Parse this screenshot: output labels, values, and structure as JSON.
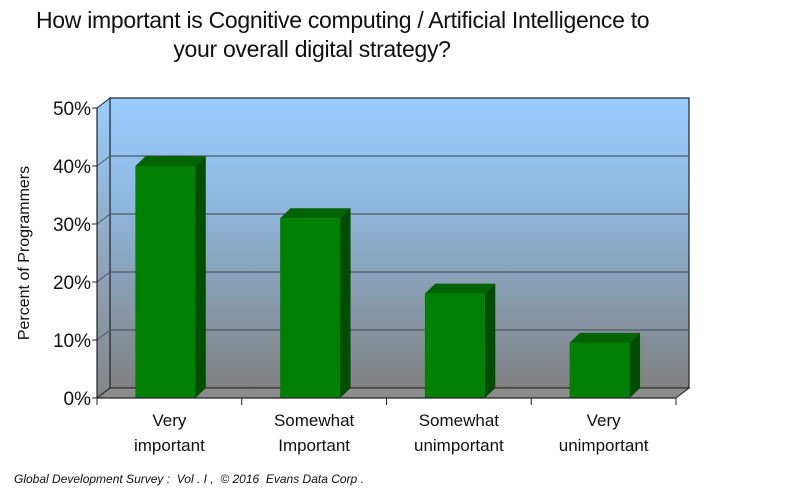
{
  "title": {
    "line1": "How important is Cognitive computing / Artificial Intelligence to",
    "line2": "your overall digital strategy?"
  },
  "footer": "Global Development Survey :  Vol . I ,  © 2016  Evans Data Corp .",
  "colors": {
    "bar_front": "#008000",
    "bar_side": "#004d00",
    "bar_top": "#006400",
    "wall_top": "#99ccff",
    "wall_bottom": "#808080",
    "gridline": "#4a5a6a",
    "axis": "#222222"
  },
  "chart_data": {
    "type": "bar",
    "title": "How important is Cognitive computing / Artificial Intelligence to your overall digital strategy?",
    "xlabel": "",
    "ylabel": "Percent of Programmers",
    "categories": [
      [
        "Very",
        "important"
      ],
      [
        "Somewhat",
        "Important"
      ],
      [
        "Somewhat",
        "unimportant"
      ],
      [
        "Very",
        "unimportant"
      ]
    ],
    "category_names": [
      "Very important",
      "Somewhat Important",
      "Somewhat unimportant",
      "Very unimportant"
    ],
    "values": [
      40,
      31,
      18,
      9.5
    ],
    "unit": "%",
    "ylim": [
      0,
      50
    ],
    "yticks": [
      "0%",
      "10%",
      "20%",
      "30%",
      "40%",
      "50%"
    ],
    "grid": true,
    "legend": "none",
    "style": "3d-column"
  }
}
